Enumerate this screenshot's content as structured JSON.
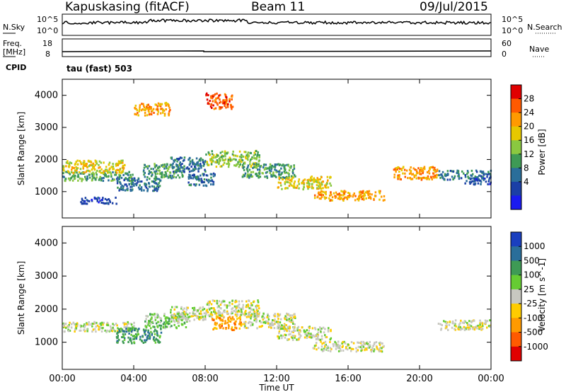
{
  "header": {
    "station": "Kapuskasing (fitACF)",
    "beam": "Beam 11",
    "date": "09/Jul/2015"
  },
  "panels": {
    "nsky_label": "N.Sky",
    "nsearch_label": "N.Search",
    "freq_label_1": "Freq.",
    "freq_label_2": "[MHz]",
    "nave_label": "Nave",
    "cpid_label": "CPID",
    "cpid_value": "tau (fast) 503",
    "nsky_ticks": [
      "10^5",
      "10^0"
    ],
    "nsearch_ticks": [
      "10^5",
      "10^0"
    ],
    "freq_ticks": [
      "18",
      "8"
    ],
    "nave_ticks": [
      "60",
      "0"
    ]
  },
  "chart_data": [
    {
      "type": "heatmap",
      "name": "Power",
      "ylabel": "Slant Range [km]",
      "xlabel": "Time UT",
      "xlim": [
        0,
        24
      ],
      "ylim": [
        180,
        4500
      ],
      "yticks": [
        1000,
        2000,
        3000,
        4000
      ],
      "colorbar": {
        "label": "Power [dB]",
        "ticks": [
          "28",
          "24",
          "20",
          "16",
          "12",
          "8",
          "4"
        ],
        "colors": [
          "#e00000",
          "#ff5a00",
          "#ff9a00",
          "#e6c800",
          "#8ac840",
          "#3e9a55",
          "#2a6e9a",
          "#1b3fa6",
          "#1a1af0"
        ]
      },
      "regions": [
        {
          "t0": 0.0,
          "t1": 4.0,
          "r0": 1350,
          "r1": 1650,
          "level": 5
        },
        {
          "t0": 0.0,
          "t1": 3.5,
          "r0": 1600,
          "r1": 2000,
          "level": 3
        },
        {
          "t0": 1.0,
          "t1": 3.0,
          "r0": 650,
          "r1": 850,
          "level": 7
        },
        {
          "t0": 3.0,
          "t1": 5.5,
          "r0": 1050,
          "r1": 1450,
          "level": 6
        },
        {
          "t0": 4.5,
          "t1": 6.8,
          "r0": 1450,
          "r1": 1900,
          "level": 5
        },
        {
          "t0": 6.0,
          "t1": 8.0,
          "r0": 1650,
          "r1": 2100,
          "level": 6
        },
        {
          "t0": 7.0,
          "t1": 8.5,
          "r0": 1200,
          "r1": 1600,
          "level": 6
        },
        {
          "t0": 8.0,
          "t1": 11.0,
          "r0": 1800,
          "r1": 2300,
          "level": 4
        },
        {
          "t0": 10.0,
          "t1": 13.0,
          "r0": 1450,
          "r1": 1900,
          "level": 5
        },
        {
          "t0": 12.0,
          "t1": 15.0,
          "r0": 1100,
          "r1": 1500,
          "level": 3
        },
        {
          "t0": 14.0,
          "t1": 18.0,
          "r0": 750,
          "r1": 1050,
          "level": 2
        },
        {
          "t0": 18.5,
          "t1": 21.0,
          "r0": 1400,
          "r1": 1800,
          "level": 2
        },
        {
          "t0": 21.0,
          "t1": 24.0,
          "r0": 1400,
          "r1": 1700,
          "level": 6
        },
        {
          "t0": 22.5,
          "t1": 24.0,
          "r0": 1250,
          "r1": 1450,
          "level": 7
        },
        {
          "t0": 4.0,
          "t1": 6.0,
          "r0": 3400,
          "r1": 3800,
          "level": 2
        },
        {
          "t0": 8.0,
          "t1": 9.5,
          "r0": 3600,
          "r1": 4100,
          "level": 1
        }
      ]
    },
    {
      "type": "heatmap",
      "name": "Velocity",
      "ylabel": "Slant Range [km]",
      "xlabel": "Time UT",
      "xlim": [
        0,
        24
      ],
      "ylim": [
        180,
        4500
      ],
      "yticks": [
        1000,
        2000,
        3000,
        4000
      ],
      "xticks": [
        "00:00",
        "04:00",
        "08:00",
        "12:00",
        "16:00",
        "20:00",
        "00:00"
      ],
      "colorbar": {
        "label": "Velocity [m s^-1]",
        "ticks": [
          "1000",
          "500",
          "100",
          "25",
          "-25",
          "-100",
          "-500",
          "-1000"
        ],
        "colors": [
          "#1a3fbf",
          "#2a6e9a",
          "#3e9a55",
          "#66cc33",
          "#c8c8c0",
          "#ffcc00",
          "#ff9a00",
          "#ff5a00",
          "#e00000"
        ]
      },
      "regions": [
        {
          "t0": 0.0,
          "t1": 4.0,
          "r0": 1350,
          "r1": 1650,
          "level": 4
        },
        {
          "t0": 3.0,
          "t1": 5.5,
          "r0": 1000,
          "r1": 1450,
          "level": 2
        },
        {
          "t0": 4.5,
          "t1": 7.0,
          "r0": 1450,
          "r1": 1900,
          "level": 3
        },
        {
          "t0": 6.0,
          "t1": 8.0,
          "r0": 1650,
          "r1": 2100,
          "level": 4
        },
        {
          "t0": 8.3,
          "t1": 10.0,
          "r0": 1400,
          "r1": 1800,
          "level": 6
        },
        {
          "t0": 8.0,
          "t1": 11.0,
          "r0": 1800,
          "r1": 2300,
          "level": 4
        },
        {
          "t0": 10.0,
          "t1": 13.0,
          "r0": 1450,
          "r1": 1900,
          "level": 4
        },
        {
          "t0": 12.0,
          "t1": 15.0,
          "r0": 1100,
          "r1": 1500,
          "level": 4
        },
        {
          "t0": 14.0,
          "t1": 18.0,
          "r0": 750,
          "r1": 1050,
          "level": 4
        },
        {
          "t0": 21.0,
          "t1": 24.0,
          "r0": 1400,
          "r1": 1700,
          "level": 4
        }
      ]
    }
  ]
}
